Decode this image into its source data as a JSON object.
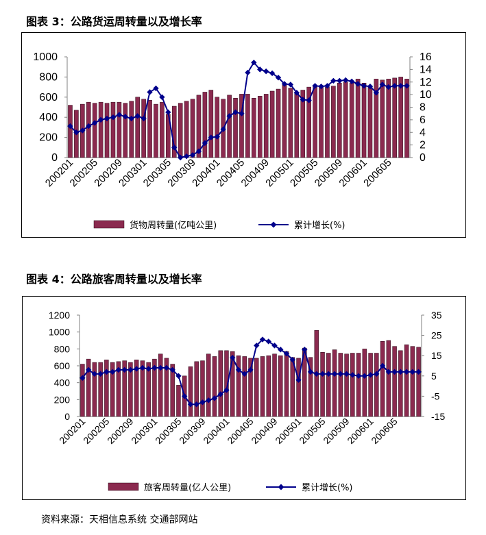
{
  "chart_data": [
    {
      "type": "bar+line",
      "title": "图表 3：公路货运周转量以及增长率",
      "categories": [
        "200201",
        "200202",
        "200203",
        "200204",
        "200205",
        "200206",
        "200207",
        "200208",
        "200209",
        "200210",
        "200211",
        "200212",
        "200301",
        "200302",
        "200303",
        "200304",
        "200305",
        "200306",
        "200307",
        "200308",
        "200309",
        "200310",
        "200311",
        "200312",
        "200401",
        "200402",
        "200403",
        "200404",
        "200405",
        "200406",
        "200407",
        "200408",
        "200409",
        "200410",
        "200411",
        "200412",
        "200501",
        "200502",
        "200503",
        "200504",
        "200505",
        "200506",
        "200507",
        "200508",
        "200509",
        "200510",
        "200511",
        "200512",
        "200601",
        "200602",
        "200603",
        "200604",
        "200605",
        "200606",
        "200607",
        "200608"
      ],
      "x_tick_labels": [
        "200201",
        "200205",
        "200209",
        "200301",
        "200305",
        "200309",
        "200401",
        "200405",
        "200409",
        "200501",
        "200505",
        "200509",
        "200601",
        "200605"
      ],
      "series": [
        {
          "name": "货物周转量(亿吨公里)",
          "type": "bar",
          "axis": "left",
          "values": [
            520,
            470,
            530,
            550,
            540,
            550,
            540,
            550,
            550,
            540,
            560,
            600,
            580,
            570,
            530,
            550,
            430,
            510,
            540,
            560,
            580,
            620,
            650,
            670,
            600,
            580,
            620,
            590,
            630,
            630,
            590,
            610,
            630,
            660,
            680,
            720,
            690,
            640,
            670,
            700,
            710,
            700,
            700,
            710,
            740,
            750,
            740,
            780,
            740,
            700,
            780,
            770,
            780,
            790,
            800,
            780
          ]
        },
        {
          "name": "累计增长(%)",
          "type": "line",
          "axis": "right",
          "values": [
            5,
            4,
            4.3,
            5,
            5.5,
            6,
            6.2,
            6.4,
            6.8,
            6.5,
            6.2,
            6.6,
            6.2,
            10.4,
            11,
            9.6,
            7.2,
            1.6,
            0,
            0.2,
            0.4,
            1,
            2.3,
            3.2,
            3.3,
            4.5,
            6.6,
            7.2,
            7,
            13.5,
            15.1,
            14,
            13.7,
            13.4,
            12.7,
            11.7,
            11.6,
            10.3,
            9.2,
            9.1,
            11.4,
            11.3,
            11.4,
            12.2,
            12.2,
            12.3,
            12.1,
            11.7,
            11.4,
            11.3,
            10.3,
            11.6,
            11.2,
            11.4,
            11.4,
            11.4
          ]
        }
      ],
      "left_axis": {
        "min": 0,
        "max": 1000,
        "ticks": [
          "0",
          "200",
          "400",
          "600",
          "800",
          "1000"
        ]
      },
      "right_axis": {
        "min": 0,
        "max": 16,
        "ticks": [
          "0",
          "2",
          "4",
          "6",
          "8",
          "10",
          "12",
          "14",
          "16"
        ]
      },
      "legend": [
        "货物周转量(亿吨公里)",
        "累计增长(%)"
      ],
      "legend_position": "bottom",
      "grid": false
    },
    {
      "type": "bar+line",
      "title": "图表 4：公路旅客周转量以及增长率",
      "categories": [
        "200201",
        "200202",
        "200203",
        "200204",
        "200205",
        "200206",
        "200207",
        "200208",
        "200209",
        "200210",
        "200211",
        "200212",
        "200301",
        "200302",
        "200303",
        "200304",
        "200305",
        "200306",
        "200307",
        "200308",
        "200309",
        "200310",
        "200311",
        "200312",
        "200401",
        "200402",
        "200403",
        "200404",
        "200405",
        "200406",
        "200407",
        "200408",
        "200409",
        "200410",
        "200411",
        "200412",
        "200501",
        "200502",
        "200503",
        "200504",
        "200505",
        "200506",
        "200507",
        "200508",
        "200509",
        "200510",
        "200511",
        "200512",
        "200601",
        "200602",
        "200603",
        "200604",
        "200605",
        "200606",
        "200607",
        "200608",
        "200609"
      ],
      "x_tick_labels": [
        "200201",
        "200205",
        "200209",
        "200301",
        "200305",
        "200309",
        "200401",
        "200405",
        "200409",
        "200501",
        "200505",
        "200509",
        "200601",
        "200605"
      ],
      "series": [
        {
          "name": "旅客周转量(亿人公里)",
          "type": "bar",
          "axis": "left",
          "values": [
            620,
            680,
            640,
            640,
            670,
            640,
            650,
            660,
            640,
            670,
            660,
            640,
            680,
            740,
            690,
            620,
            370,
            480,
            590,
            650,
            660,
            740,
            710,
            780,
            780,
            770,
            720,
            710,
            690,
            690,
            710,
            720,
            740,
            720,
            770,
            700,
            690,
            810,
            700,
            1020,
            760,
            750,
            790,
            750,
            740,
            750,
            750,
            800,
            750,
            750,
            890,
            900,
            830,
            780,
            850,
            830,
            820
          ]
        },
        {
          "name": "累计增长(%)",
          "type": "line",
          "axis": "right",
          "values": [
            4,
            8,
            6,
            6,
            7,
            7,
            8,
            8,
            8,
            8.5,
            9,
            8.5,
            9,
            9,
            9,
            8,
            5,
            -5,
            -9,
            -9,
            -8,
            -7,
            -6,
            -4,
            -2,
            14,
            8,
            6,
            8,
            20,
            23,
            22,
            20,
            18,
            16,
            13,
            3,
            18,
            7,
            6,
            6,
            6,
            6,
            6,
            6,
            5.5,
            5,
            5,
            5.5,
            6,
            10,
            7,
            7,
            7,
            7,
            7,
            7
          ]
        }
      ],
      "left_axis": {
        "min": 0,
        "max": 1200,
        "ticks": [
          "0",
          "200",
          "400",
          "600",
          "800",
          "1000",
          "1200"
        ]
      },
      "right_axis": {
        "min": -15,
        "max": 35,
        "ticks": [
          "-15",
          "-5",
          "5",
          "15",
          "25",
          "35"
        ]
      },
      "legend": [
        "旅客周转量(亿人公里)",
        "累计增长(%)"
      ],
      "legend_position": "bottom",
      "grid": false
    }
  ],
  "source": "资料来源：天相信息系统 交通部网站",
  "colors": {
    "bar": "#8b2a4f",
    "bar_edge": "#2a0a18",
    "line": "#00008b",
    "axis": "#808080"
  }
}
